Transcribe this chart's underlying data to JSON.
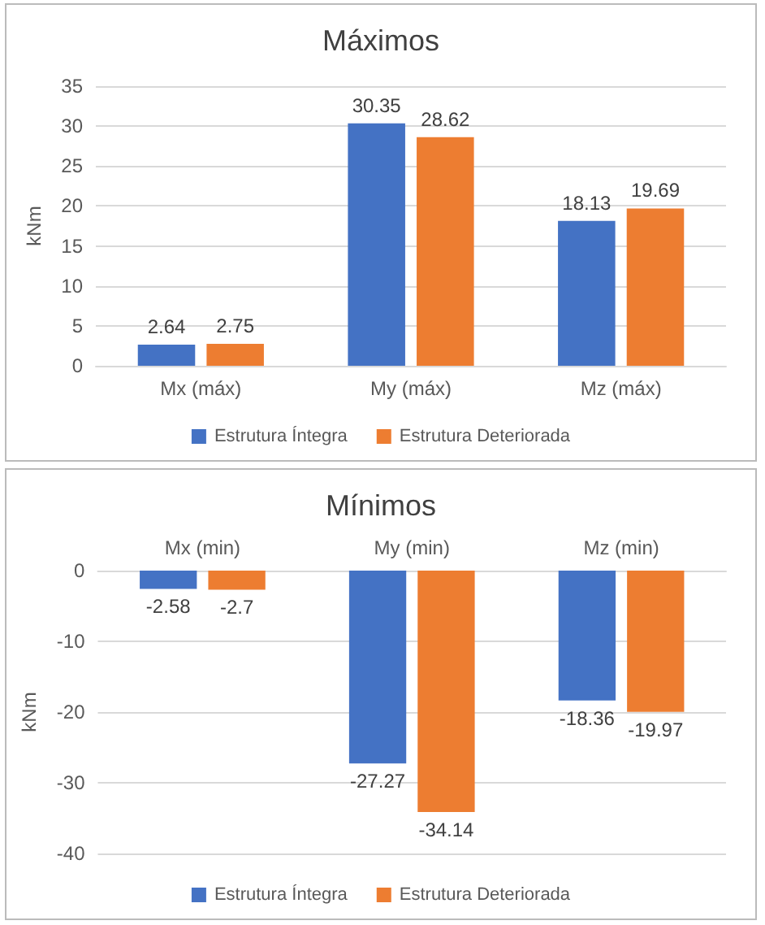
{
  "chart_data": [
    {
      "type": "bar",
      "title": "Máximos",
      "ylabel": "kNm",
      "categories": [
        "Mx (máx)",
        "My (máx)",
        "Mz (máx)"
      ],
      "series": [
        {
          "name": "Estrutura Íntegra",
          "color": "#4472c4",
          "values": [
            2.64,
            30.35,
            18.13
          ]
        },
        {
          "name": "Estrutura Deteriorada",
          "color": "#ed7d31",
          "values": [
            2.75,
            28.62,
            19.69
          ]
        }
      ],
      "ylim": [
        0,
        35
      ],
      "yticks": [
        0,
        5,
        10,
        15,
        20,
        25,
        30,
        35
      ],
      "grid": "y",
      "legend": "bottom",
      "data_labels": true
    },
    {
      "type": "bar",
      "title": "Mínimos",
      "ylabel": "kNm",
      "categories": [
        "Mx (min)",
        "My (min)",
        "Mz (min)"
      ],
      "series": [
        {
          "name": "Estrutura Íntegra",
          "color": "#4472c4",
          "values": [
            -2.58,
            -27.27,
            -18.36
          ]
        },
        {
          "name": "Estrutura Deteriorada",
          "color": "#ed7d31",
          "values": [
            -2.7,
            -34.14,
            -19.97
          ]
        }
      ],
      "ylim": [
        -40,
        0
      ],
      "yticks": [
        -40,
        -30,
        -20,
        -10,
        0
      ],
      "grid": "y",
      "legend": "bottom",
      "data_labels": true
    }
  ]
}
